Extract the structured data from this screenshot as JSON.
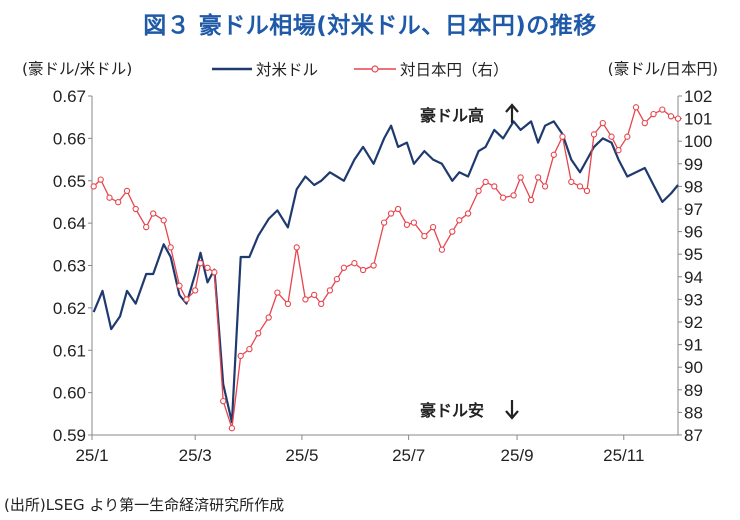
{
  "title": "図３ 豪ドル相場(対米ドル、日本円)の推移",
  "source": "(出所)LSEG より第一生命経済研究所作成",
  "chart_data": {
    "type": "line",
    "x_tick_labels": [
      "25/1",
      "25/3",
      "25/5",
      "25/7",
      "25/9",
      "25/11"
    ],
    "left_axis": {
      "unit_label": "(豪ドル/米ドル)",
      "ylim": [
        0.59,
        0.67
      ],
      "ticks": [
        "0.59",
        "0.60",
        "0.61",
        "0.62",
        "0.63",
        "0.64",
        "0.65",
        "0.66",
        "0.67"
      ]
    },
    "right_axis": {
      "unit_label": "(豪ドル/日本円)",
      "ylim": [
        87,
        102
      ],
      "ticks": [
        "87",
        "88",
        "89",
        "90",
        "91",
        "92",
        "93",
        "94",
        "95",
        "96",
        "97",
        "98",
        "99",
        "100",
        "101",
        "102"
      ]
    },
    "annotations": [
      "豪ドル高",
      "豪ドル安"
    ],
    "series": [
      {
        "name": "対米ドル",
        "axis": "left",
        "color": "#1f3a6e",
        "marker": "none",
        "x": [
          1,
          6,
          11,
          16,
          20,
          25,
          31,
          35,
          41,
          45,
          50,
          54,
          59,
          62,
          66,
          70,
          75,
          80,
          85,
          90,
          95,
          101,
          106,
          112,
          117,
          122,
          127,
          131,
          136,
          140,
          144,
          150,
          155,
          161,
          167,
          171,
          175,
          180,
          184,
          190,
          195,
          200,
          206,
          210,
          215,
          221,
          225,
          230,
          235,
          241,
          245,
          251,
          255,
          259,
          264,
          269,
          274,
          279,
          283,
          287,
          292,
          297,
          301,
          306,
          311,
          316,
          321,
          326,
          331,
          335
        ],
        "y": [
          0.619,
          0.624,
          0.615,
          0.618,
          0.624,
          0.621,
          0.628,
          0.628,
          0.635,
          0.632,
          0.623,
          0.621,
          0.628,
          0.633,
          0.626,
          0.629,
          0.602,
          0.593,
          0.632,
          0.632,
          0.637,
          0.641,
          0.643,
          0.639,
          0.648,
          0.651,
          0.649,
          0.65,
          0.652,
          0.651,
          0.65,
          0.655,
          0.658,
          0.654,
          0.66,
          0.663,
          0.658,
          0.659,
          0.654,
          0.657,
          0.655,
          0.654,
          0.65,
          0.652,
          0.651,
          0.657,
          0.658,
          0.662,
          0.66,
          0.664,
          0.662,
          0.664,
          0.659,
          0.663,
          0.664,
          0.661,
          0.655,
          0.652,
          0.655,
          0.658,
          0.66,
          0.659,
          0.655,
          0.651,
          0.652,
          0.653,
          0.649,
          0.645,
          0.647,
          0.649
        ]
      },
      {
        "name": "対日本円（右）",
        "axis": "right",
        "color": "#e8454d",
        "marker": "circle",
        "x": [
          1,
          5,
          10,
          15,
          20,
          25,
          31,
          35,
          41,
          45,
          50,
          54,
          59,
          62,
          66,
          70,
          75,
          80,
          85,
          90,
          95,
          101,
          106,
          112,
          117,
          122,
          127,
          131,
          136,
          140,
          144,
          150,
          155,
          161,
          167,
          171,
          175,
          180,
          184,
          190,
          195,
          200,
          206,
          210,
          215,
          221,
          225,
          230,
          235,
          241,
          245,
          251,
          255,
          259,
          264,
          269,
          274,
          279,
          283,
          287,
          292,
          297,
          301,
          306,
          311,
          316,
          321,
          326,
          331,
          335
        ],
        "y": [
          98.0,
          98.3,
          97.5,
          97.3,
          97.8,
          97.0,
          96.2,
          96.8,
          96.5,
          95.3,
          93.6,
          93.0,
          93.4,
          94.6,
          94.4,
          94.2,
          88.5,
          87.3,
          90.5,
          90.8,
          91.5,
          92.2,
          93.3,
          92.8,
          95.3,
          93.0,
          93.2,
          92.8,
          93.4,
          93.9,
          94.4,
          94.6,
          94.3,
          94.5,
          96.4,
          96.8,
          97.0,
          96.3,
          96.4,
          95.8,
          96.2,
          95.2,
          96.0,
          96.5,
          96.8,
          97.8,
          98.2,
          98.0,
          97.5,
          97.6,
          98.4,
          97.4,
          98.4,
          98.0,
          99.4,
          100.2,
          98.2,
          98.0,
          97.8,
          100.3,
          100.8,
          100.2,
          99.6,
          100.2,
          101.5,
          100.8,
          101.2,
          101.4,
          101.1,
          101.0
        ]
      }
    ]
  }
}
